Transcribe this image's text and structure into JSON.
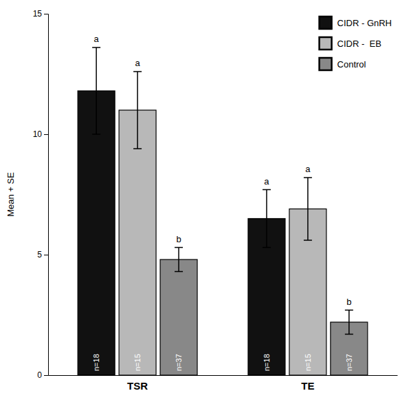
{
  "chart_data": {
    "type": "bar",
    "y_label": "Mean + SE",
    "categories": [
      "TSR",
      "TE"
    ],
    "series": [
      {
        "name": "CIDR - GnRH",
        "color": "#111111",
        "edge_color": "#000000",
        "values": [
          11.8,
          6.5
        ],
        "errors": [
          1.8,
          1.2
        ],
        "n_labels": [
          "n=18",
          "n=18"
        ],
        "sig_labels": [
          "a",
          "a"
        ]
      },
      {
        "name": "CIDR -  EB",
        "color": "#b8b8b8",
        "edge_color": "#000000",
        "values": [
          11.0,
          6.9
        ],
        "errors": [
          1.6,
          1.3
        ],
        "n_labels": [
          "n=15",
          "n=15"
        ],
        "sig_labels": [
          "a",
          "a"
        ]
      },
      {
        "name": "Control",
        "color": "#888888",
        "edge_color": "#000000",
        "values": [
          4.8,
          2.2
        ],
        "errors": [
          0.5,
          0.5
        ],
        "n_labels": [
          "n=37",
          "n=37"
        ],
        "sig_labels": [
          "b",
          "b"
        ]
      }
    ],
    "ylim": [
      0,
      15
    ],
    "yticks": [
      0,
      5,
      10,
      15
    ],
    "grid": false,
    "legend": "upper right"
  }
}
